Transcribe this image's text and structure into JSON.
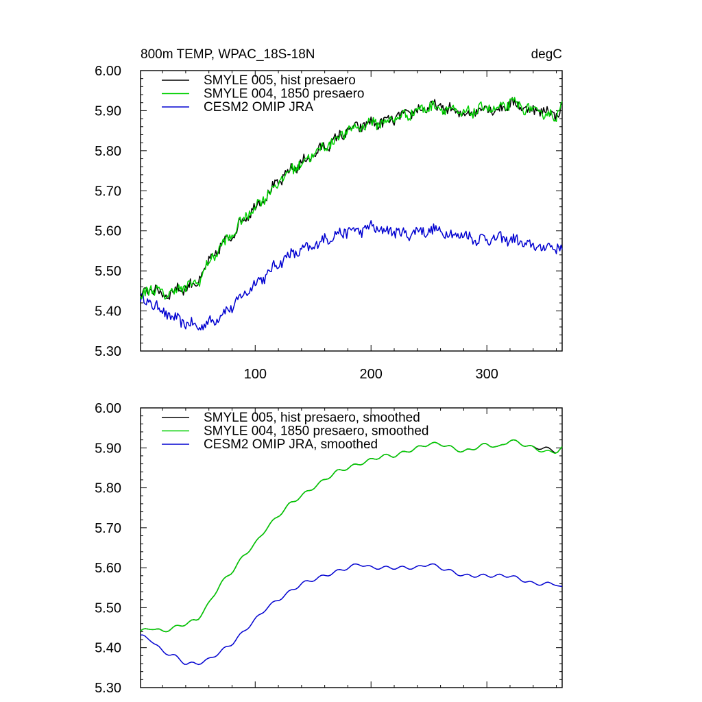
{
  "chart_data": [
    {
      "type": "line",
      "title": "800m TEMP, WPAC_18S-18N",
      "units": "degC",
      "xlabel": "",
      "ylabel": "",
      "xlim": [
        1,
        365
      ],
      "ylim": [
        5.3,
        6.0
      ],
      "xticks": [
        100,
        200,
        300
      ],
      "xtick_labels": [
        "100",
        "200",
        "300"
      ],
      "yticks": [
        5.3,
        5.4,
        5.5,
        5.6,
        5.7,
        5.8,
        5.9,
        6.0
      ],
      "ytick_labels": [
        "5.30",
        "5.40",
        "5.50",
        "5.60",
        "5.70",
        "5.80",
        "5.90",
        "6.00"
      ],
      "grid": false,
      "legend_position": "top-left",
      "series": [
        {
          "name": "SMYLE 005, hist presaero",
          "color": "#000000",
          "x": [
            1,
            10,
            20,
            30,
            40,
            50,
            60,
            70,
            80,
            90,
            100,
            110,
            120,
            130,
            140,
            150,
            160,
            170,
            180,
            190,
            200,
            210,
            220,
            230,
            240,
            250,
            260,
            270,
            280,
            290,
            300,
            310,
            320,
            330,
            340,
            350,
            360,
            365
          ],
          "y": [
            5.43,
            5.46,
            5.44,
            5.45,
            5.46,
            5.47,
            5.52,
            5.56,
            5.59,
            5.63,
            5.66,
            5.69,
            5.72,
            5.75,
            5.77,
            5.79,
            5.81,
            5.83,
            5.85,
            5.86,
            5.87,
            5.87,
            5.88,
            5.89,
            5.9,
            5.91,
            5.91,
            5.9,
            5.89,
            5.9,
            5.91,
            5.9,
            5.92,
            5.91,
            5.9,
            5.9,
            5.89,
            5.91
          ]
        },
        {
          "name": "SMYLE 004, 1850 presaero",
          "color": "#00d000",
          "x": [
            1,
            10,
            20,
            30,
            40,
            50,
            60,
            70,
            80,
            90,
            100,
            110,
            120,
            130,
            140,
            150,
            160,
            170,
            180,
            190,
            200,
            210,
            220,
            230,
            240,
            250,
            260,
            270,
            280,
            290,
            300,
            310,
            320,
            330,
            340,
            350,
            360,
            365
          ],
          "y": [
            5.43,
            5.46,
            5.44,
            5.45,
            5.46,
            5.47,
            5.52,
            5.56,
            5.59,
            5.63,
            5.66,
            5.69,
            5.72,
            5.75,
            5.77,
            5.79,
            5.81,
            5.83,
            5.85,
            5.86,
            5.87,
            5.87,
            5.88,
            5.89,
            5.9,
            5.91,
            5.91,
            5.9,
            5.89,
            5.9,
            5.91,
            5.9,
            5.92,
            5.91,
            5.9,
            5.89,
            5.89,
            5.91
          ]
        },
        {
          "name": "CESM2 OMIP JRA",
          "color": "#0000d0",
          "x": [
            1,
            10,
            20,
            30,
            40,
            50,
            60,
            70,
            80,
            90,
            100,
            110,
            120,
            130,
            140,
            150,
            160,
            170,
            180,
            190,
            200,
            210,
            220,
            230,
            240,
            250,
            260,
            270,
            280,
            290,
            300,
            310,
            320,
            330,
            340,
            350,
            360,
            365
          ],
          "y": [
            5.43,
            5.42,
            5.4,
            5.38,
            5.37,
            5.36,
            5.37,
            5.39,
            5.41,
            5.44,
            5.47,
            5.49,
            5.52,
            5.54,
            5.55,
            5.56,
            5.58,
            5.59,
            5.6,
            5.6,
            5.61,
            5.6,
            5.6,
            5.59,
            5.6,
            5.6,
            5.6,
            5.59,
            5.59,
            5.58,
            5.58,
            5.58,
            5.58,
            5.57,
            5.56,
            5.56,
            5.56,
            5.56
          ]
        }
      ]
    },
    {
      "type": "line",
      "title": "",
      "xlabel": "",
      "ylabel": "",
      "xlim": [
        1,
        365
      ],
      "ylim": [
        5.3,
        6.0
      ],
      "xticks": [
        100,
        200,
        300
      ],
      "xtick_labels": [],
      "yticks": [
        5.3,
        5.4,
        5.5,
        5.6,
        5.7,
        5.8,
        5.9,
        6.0
      ],
      "ytick_labels": [
        "5.30",
        "5.40",
        "5.50",
        "5.60",
        "5.70",
        "5.80",
        "5.90",
        "6.00"
      ],
      "grid": false,
      "legend_position": "top-left",
      "series": [
        {
          "name": "SMYLE 005, hist presaero, smoothed",
          "color": "#000000",
          "x": [
            1,
            10,
            20,
            30,
            40,
            50,
            60,
            70,
            80,
            90,
            100,
            110,
            120,
            130,
            140,
            150,
            160,
            170,
            180,
            190,
            200,
            210,
            220,
            230,
            240,
            250,
            260,
            270,
            280,
            290,
            300,
            310,
            320,
            330,
            340,
            350,
            360,
            365
          ],
          "y": [
            5.44,
            5.45,
            5.44,
            5.45,
            5.46,
            5.47,
            5.51,
            5.56,
            5.59,
            5.63,
            5.66,
            5.7,
            5.73,
            5.76,
            5.78,
            5.8,
            5.82,
            5.84,
            5.85,
            5.86,
            5.87,
            5.88,
            5.88,
            5.89,
            5.9,
            5.91,
            5.91,
            5.9,
            5.89,
            5.9,
            5.91,
            5.9,
            5.92,
            5.91,
            5.9,
            5.9,
            5.89,
            5.9
          ]
        },
        {
          "name": "SMYLE 004, 1850 presaero, smoothed",
          "color": "#00d000",
          "x": [
            1,
            10,
            20,
            30,
            40,
            50,
            60,
            70,
            80,
            90,
            100,
            110,
            120,
            130,
            140,
            150,
            160,
            170,
            180,
            190,
            200,
            210,
            220,
            230,
            240,
            250,
            260,
            270,
            280,
            290,
            300,
            310,
            320,
            330,
            340,
            350,
            360,
            365
          ],
          "y": [
            5.44,
            5.45,
            5.44,
            5.45,
            5.46,
            5.47,
            5.51,
            5.56,
            5.59,
            5.63,
            5.66,
            5.7,
            5.73,
            5.76,
            5.78,
            5.8,
            5.82,
            5.84,
            5.85,
            5.86,
            5.87,
            5.88,
            5.88,
            5.89,
            5.9,
            5.91,
            5.91,
            5.9,
            5.89,
            5.9,
            5.91,
            5.9,
            5.92,
            5.91,
            5.9,
            5.89,
            5.89,
            5.9
          ]
        },
        {
          "name": "CESM2 OMIP JRA, smoothed",
          "color": "#0000d0",
          "x": [
            1,
            10,
            20,
            30,
            40,
            50,
            60,
            70,
            80,
            90,
            100,
            110,
            120,
            130,
            140,
            150,
            160,
            170,
            180,
            190,
            200,
            210,
            220,
            230,
            240,
            250,
            260,
            270,
            280,
            290,
            300,
            310,
            320,
            330,
            340,
            350,
            360,
            365
          ],
          "y": [
            5.43,
            5.42,
            5.39,
            5.38,
            5.36,
            5.36,
            5.37,
            5.39,
            5.41,
            5.44,
            5.47,
            5.5,
            5.52,
            5.54,
            5.56,
            5.57,
            5.58,
            5.59,
            5.6,
            5.61,
            5.6,
            5.6,
            5.6,
            5.6,
            5.6,
            5.61,
            5.6,
            5.59,
            5.58,
            5.58,
            5.58,
            5.58,
            5.58,
            5.57,
            5.56,
            5.56,
            5.56,
            5.55
          ]
        }
      ]
    }
  ]
}
